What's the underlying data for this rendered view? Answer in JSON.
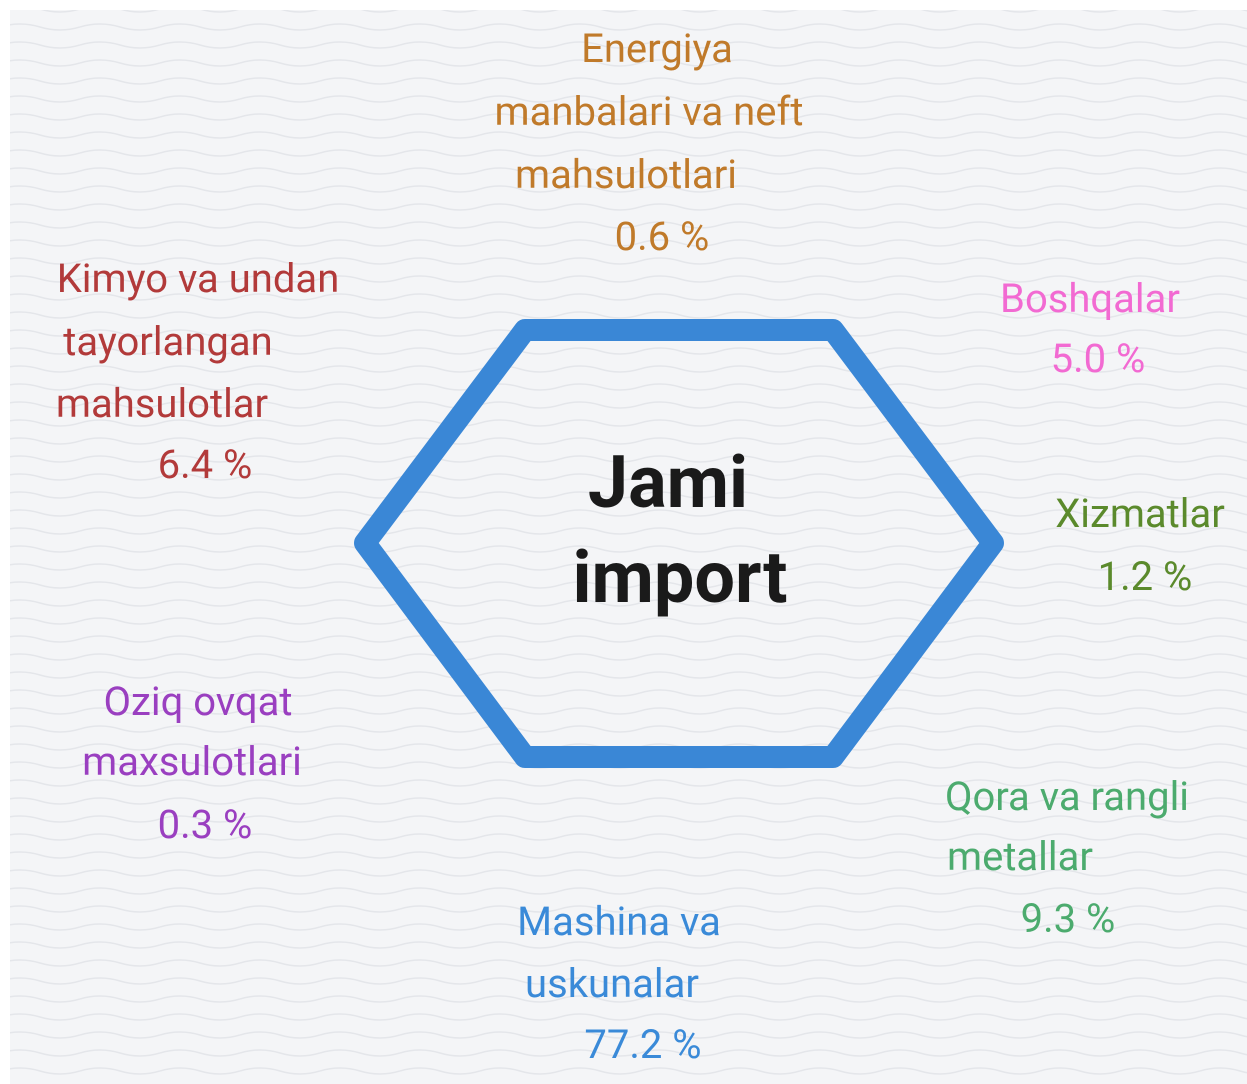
{
  "center": {
    "lines": [
      "Jami",
      "import"
    ]
  },
  "items": [
    {
      "lines": [
        "Energiya",
        "manbalari va neft",
        "mahsulotlari"
      ],
      "value": "0.6 %",
      "color": "#c07a2a"
    },
    {
      "lines": [
        "Kimyo va undan",
        "tayorlangan",
        "mahsulotlar"
      ],
      "value": "6.4 %",
      "color": "#b23a3a"
    },
    {
      "lines": [
        "Boshqalar"
      ],
      "value": "5.0 %",
      "color": "#f26ad2"
    },
    {
      "lines": [
        "Xizmatlar"
      ],
      "value": "1.2 %",
      "color": "#5b8a2c"
    },
    {
      "lines": [
        "Oziq ovqat",
        "maxsulotlari"
      ],
      "value": "0.3 %",
      "color": "#9a3fc0"
    },
    {
      "lines": [
        "Qora va rangli",
        "metallar"
      ],
      "value": "9.3 %",
      "color": "#4cab6e"
    },
    {
      "lines": [
        "Mashina va",
        "uskunalar"
      ],
      "value": "77.2 %",
      "color": "#3a8ad8"
    }
  ]
}
